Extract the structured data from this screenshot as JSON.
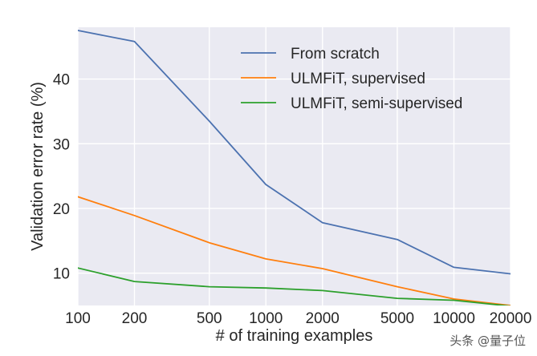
{
  "chart_data": {
    "type": "line",
    "xscale": "log",
    "x": [
      100,
      200,
      500,
      1000,
      2000,
      5000,
      10000,
      20000
    ],
    "x_tick_labels": [
      "100",
      "200",
      "500",
      "1000",
      "2000",
      "5000",
      "10000",
      "20000"
    ],
    "y_ticks": [
      10,
      20,
      30,
      40
    ],
    "y_tick_labels": [
      "10",
      "20",
      "30",
      "40"
    ],
    "xlim": [
      100,
      20000
    ],
    "ylim": [
      5,
      48
    ],
    "xlabel": "# of training examples",
    "ylabel": "Validation error rate (%)",
    "grid": true,
    "legend_position": "top-right",
    "background_color": "#eaeaf2",
    "series": [
      {
        "name": "From scratch",
        "color": "#4c72b0",
        "values": [
          47.5,
          45.8,
          33.5,
          23.7,
          17.8,
          15.2,
          10.9,
          9.9
        ]
      },
      {
        "name": "ULMFiT, supervised",
        "color": "#ff7f0e",
        "values": [
          21.8,
          18.9,
          14.7,
          12.2,
          10.7,
          7.9,
          6.0,
          5.0
        ]
      },
      {
        "name": "ULMFiT, semi-supervised",
        "color": "#2ca02c",
        "values": [
          10.8,
          8.7,
          7.9,
          7.7,
          7.3,
          6.1,
          5.8,
          4.9
        ]
      }
    ]
  },
  "watermark": {
    "text": "头条 @量子位"
  }
}
